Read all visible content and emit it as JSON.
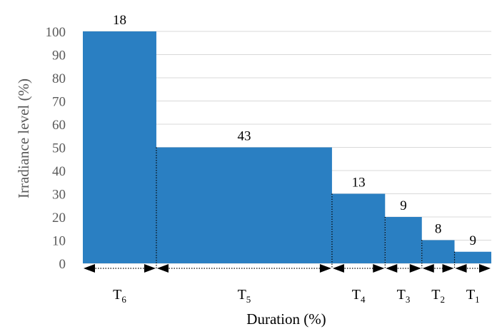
{
  "chart_data": {
    "type": "bar",
    "subtype": "variable-width step bars",
    "title": "",
    "xlabel": "Duration (%)",
    "ylabel": "Irradiance level (%)",
    "ylim": [
      0,
      100
    ],
    "yticks": [
      0,
      10,
      20,
      30,
      40,
      50,
      60,
      70,
      80,
      90,
      100
    ],
    "grid": true,
    "bar_color": "#2a7fc2",
    "bars": [
      {
        "segment": "T",
        "subscript": "6",
        "duration": 18,
        "irradiance": 100,
        "label": "18"
      },
      {
        "segment": "T",
        "subscript": "5",
        "duration": 43,
        "irradiance": 50,
        "label": "43"
      },
      {
        "segment": "T",
        "subscript": "4",
        "duration": 13,
        "irradiance": 30,
        "label": "13"
      },
      {
        "segment": "T",
        "subscript": "3",
        "duration": 9,
        "irradiance": 20,
        "label": "9"
      },
      {
        "segment": "T",
        "subscript": "2",
        "duration": 8,
        "irradiance": 10,
        "label": "8"
      },
      {
        "segment": "T",
        "subscript": "1",
        "duration": 9,
        "irradiance": 5,
        "label": "9"
      }
    ]
  }
}
